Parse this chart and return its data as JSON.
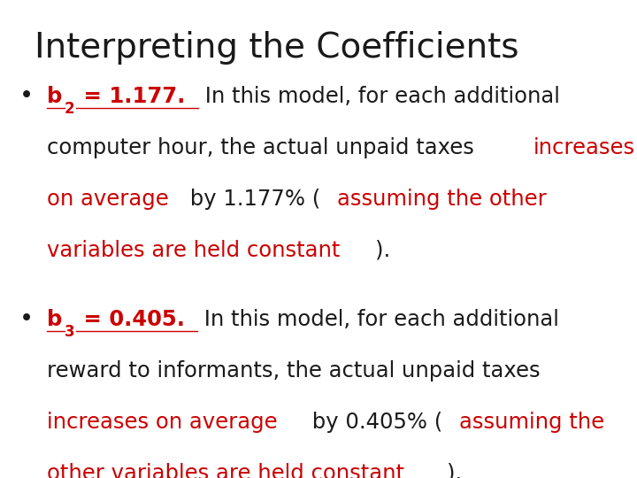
{
  "title": "Interpreting the Coefficients",
  "title_fontsize": 28,
  "title_color": "#1a1a1a",
  "bg_color": "#ffffff",
  "bullet_color": "#1a1a1a",
  "red_color": "#cc0000",
  "black_color": "#1a1a1a",
  "bullet1": {
    "label_bold": "b",
    "label_sub": "2",
    "label_eq": " = 1.177.",
    "line1_black1": " In this model, for each additional",
    "line2_black1": "computer hour, the actual unpaid taxes ",
    "line2_red1": "increases",
    "line3_red1": "on average",
    "line3_black2": " by 1.177% (",
    "line3_red2": "assuming the other",
    "line4_red1": "variables are held constant",
    "line4_black1": ")."
  },
  "bullet2": {
    "label_bold": "b",
    "label_sub": "3",
    "label_eq": " = 0.405.",
    "line1_black1": " In this model, for each additional",
    "line2_black1": "reward to informants, the actual unpaid taxes",
    "line3_red1": "increases on average",
    "line3_black1": " by 0.405% (",
    "line3_red2": "assuming the",
    "line4_red1": "other variables are held constant",
    "line4_black1": ")."
  }
}
